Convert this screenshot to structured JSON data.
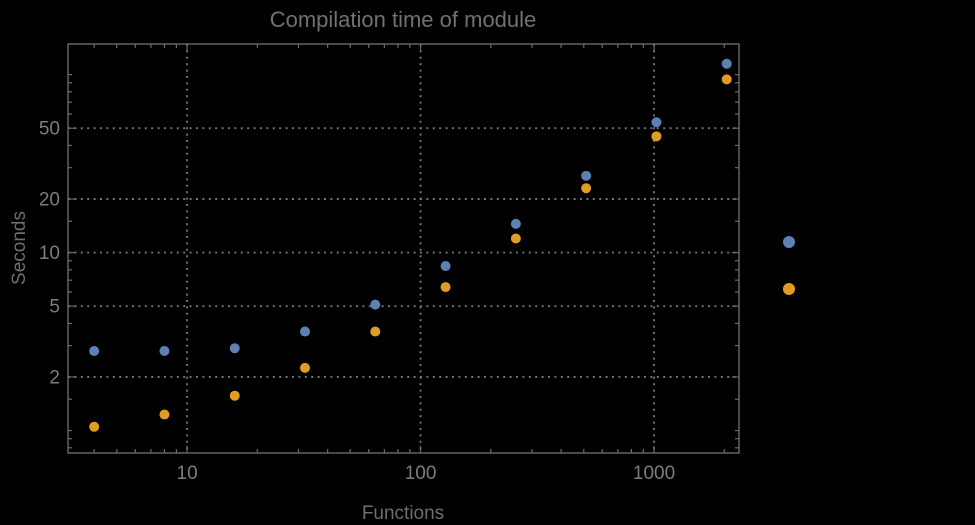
{
  "window": {
    "background": "#000000"
  },
  "chart_data": {
    "type": "scatter",
    "title": "Compilation time of module",
    "xlabel": "Functions",
    "ylabel": "Seconds",
    "x_scale": "log",
    "y_scale": "log",
    "x_range": [
      3.09,
      2312
    ],
    "y_range": [
      0.748,
      148.6
    ],
    "grid": "dotted-at-major-ticks",
    "legend_position": "right-of-plot",
    "x_ticks": [
      {
        "v": 10,
        "label": "10"
      },
      {
        "v": 100,
        "label": "100"
      },
      {
        "v": 1000,
        "label": "1000"
      }
    ],
    "x_minor_ticks": [
      4,
      5,
      6,
      7,
      8,
      9,
      20,
      30,
      40,
      50,
      60,
      70,
      80,
      90,
      200,
      300,
      400,
      500,
      600,
      700,
      800,
      900,
      2000
    ],
    "y_ticks": [
      {
        "v": 2,
        "label": "2"
      },
      {
        "v": 5,
        "label": "5"
      },
      {
        "v": 10,
        "label": "10"
      },
      {
        "v": 20,
        "label": "20"
      },
      {
        "v": 50,
        "label": "50"
      }
    ],
    "y_minor_ticks": [
      0.8,
      0.9,
      1,
      1.5,
      3,
      4,
      6,
      7,
      8,
      9,
      15,
      30,
      40,
      60,
      70,
      80,
      90,
      100
    ],
    "x": [
      4,
      8,
      16,
      32,
      64,
      128,
      256,
      512,
      1024,
      2048
    ],
    "series": [
      {
        "name": "series-1",
        "color": "#5e81b5",
        "values": [
          2.8,
          2.8,
          2.9,
          3.6,
          5.1,
          8.4,
          14.5,
          27,
          54,
          115
        ]
      },
      {
        "name": "series-2",
        "color": "#e19c24",
        "values": [
          1.05,
          1.23,
          1.57,
          2.25,
          3.6,
          6.4,
          12,
          23,
          45,
          94
        ]
      }
    ],
    "legend": {
      "items": [
        {
          "series": "series-1",
          "color": "#5e81b5",
          "label": ""
        },
        {
          "series": "series-2",
          "color": "#e19c24",
          "label": ""
        }
      ]
    },
    "style": {
      "background": "#000000",
      "frame_color": "#6a6a6a",
      "grid_color": "#757575",
      "tick_color": "#6a6a6a",
      "tick_label_color": "#7d7d7d",
      "title_color": "#717171",
      "axis_label_color": "#6e6e6e"
    }
  }
}
